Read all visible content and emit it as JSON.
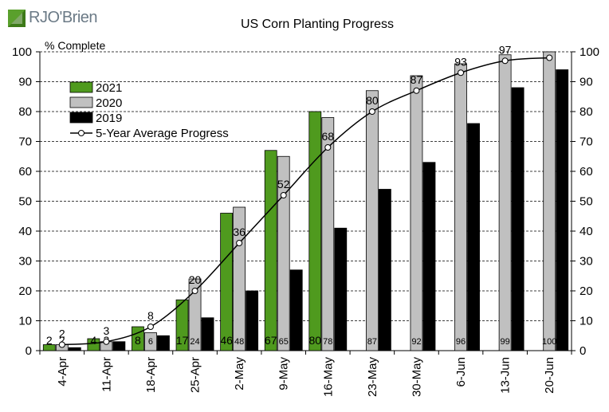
{
  "logo": {
    "text": "RJO'Brien",
    "icon": "rjo-logo-mark"
  },
  "chart_data": {
    "type": "bar",
    "title": "US Corn Planting Progress",
    "ylabel": "% Complete",
    "ylim": [
      0,
      100
    ],
    "yticks": [
      0,
      10,
      20,
      30,
      40,
      50,
      60,
      70,
      80,
      90,
      100
    ],
    "grid": "horizontal dashed",
    "legend_placement": "top-left",
    "categories": [
      "4-Apr",
      "11-Apr",
      "18-Apr",
      "25-Apr",
      "2-May",
      "9-May",
      "16-May",
      "23-May",
      "30-May",
      "6-Jun",
      "13-Jun",
      "20-Jun"
    ],
    "series": [
      {
        "name": "2021",
        "kind": "bar",
        "color": "#4f9a1e",
        "values": [
          2,
          4,
          8,
          17,
          46,
          67,
          80,
          null,
          null,
          null,
          null,
          null
        ]
      },
      {
        "name": "2020",
        "kind": "bar",
        "color": "#c0c0c0",
        "values": [
          2,
          3,
          6,
          24,
          48,
          65,
          78,
          87,
          92,
          96,
          99,
          100
        ]
      },
      {
        "name": "2019",
        "kind": "bar",
        "color": "#000000",
        "values": [
          1,
          3,
          5,
          11,
          20,
          27,
          41,
          54,
          63,
          76,
          88,
          94
        ]
      },
      {
        "name": "5-Year Average Progress",
        "kind": "line",
        "color": "#000000",
        "values": [
          2,
          3,
          8,
          20,
          36,
          52,
          68,
          80,
          87,
          93,
          97,
          98
        ]
      }
    ],
    "line_labels": [
      "2",
      "3",
      "8",
      "20",
      "36",
      "52",
      "68",
      "80",
      "87",
      "93",
      "97",
      null
    ],
    "bar_labels_2021": [
      "2",
      "4",
      "8",
      "17",
      "46",
      "67",
      "80",
      null,
      null,
      null,
      null,
      null
    ],
    "bar_labels_2020": [
      "2",
      "3",
      "6",
      "24",
      "48",
      "65",
      "78",
      "87",
      "92",
      "96",
      "99",
      "100"
    ]
  }
}
